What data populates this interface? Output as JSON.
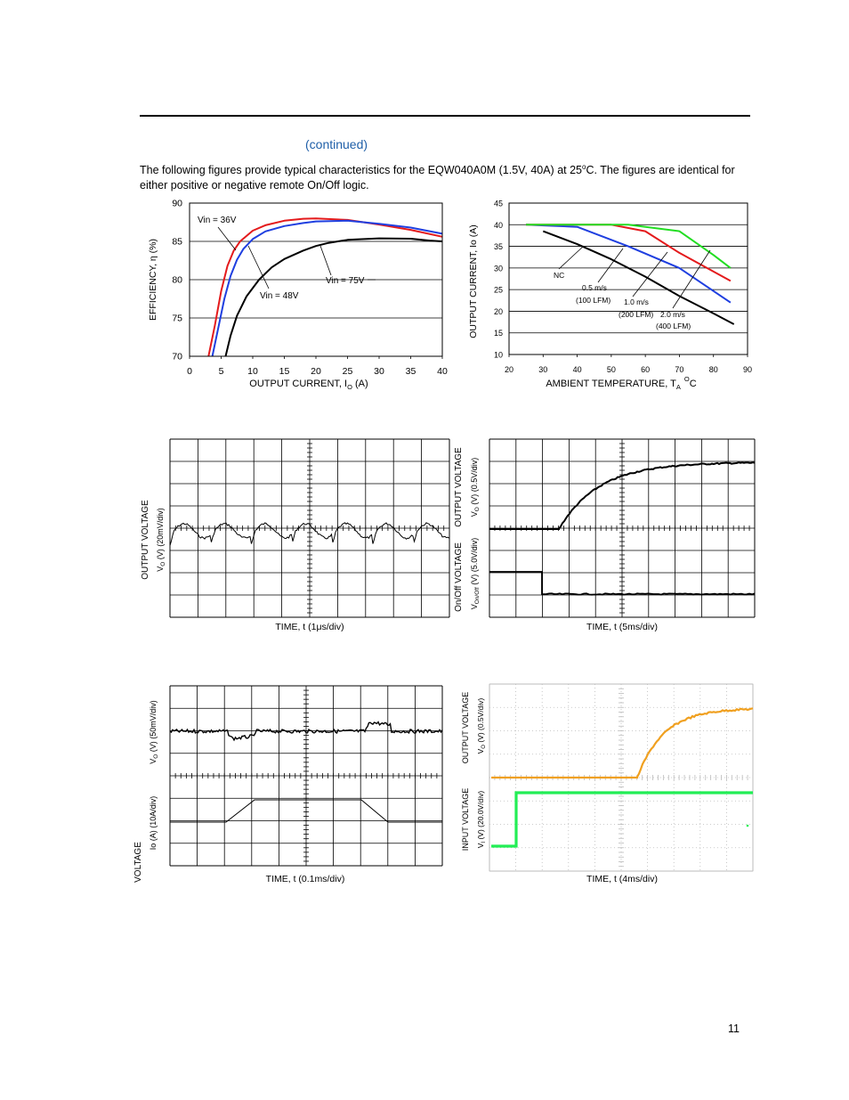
{
  "header": {
    "continued": "(continued)"
  },
  "intro": {
    "text_a": "The following figures provide typical characteristics for the EQW040A0M (1.5V, 40A) at 25",
    "sup": "o",
    "text_b": "C.  The figures are identical for either positive or negative remote On/Off logic."
  },
  "page_number": "11",
  "charts": [
    {
      "id": "efficiency",
      "type": "line",
      "ylabel_a": "EFFICIENCY, η  (%)",
      "xlabel_a": "OUTPUT CURRENT, I",
      "xlabel_sub": "O",
      "xlabel_b": " (A)",
      "x_ticks": [
        "0",
        "5",
        "10",
        "15",
        "20",
        "25",
        "30",
        "35",
        "40"
      ],
      "y_ticks": [
        "90",
        "85",
        "80",
        "75",
        "70"
      ],
      "xlim": [
        0,
        40
      ],
      "ylim": [
        70,
        90
      ],
      "annotations": [
        "Vin = 36V",
        "Vin = 48V",
        "Vin = 75V"
      ],
      "series": [
        {
          "name": "Vin = 36V",
          "color": "#e41a1c",
          "x": [
            3,
            4,
            5,
            6,
            7,
            8,
            10,
            12,
            15,
            18,
            20,
            25,
            30,
            35,
            40
          ],
          "y": [
            70,
            74,
            78.5,
            81.8,
            83.8,
            85,
            86.4,
            87.1,
            87.7,
            87.95,
            88,
            87.8,
            87.2,
            86.5,
            85.6
          ]
        },
        {
          "name": "Vin = 48V",
          "color": "#1f3fe0",
          "x": [
            3.6,
            4.5,
            5.5,
            6.5,
            7.5,
            8.5,
            10,
            12,
            15,
            18,
            20,
            25,
            30,
            35,
            40
          ],
          "y": [
            70,
            73.5,
            77.5,
            80.5,
            82.6,
            84,
            85.3,
            86.3,
            87,
            87.4,
            87.6,
            87.7,
            87.3,
            86.8,
            86
          ]
        },
        {
          "name": "Vin = 75V",
          "color": "#000000",
          "x": [
            5.7,
            6.5,
            7.5,
            9,
            11,
            13,
            15,
            18,
            20,
            22,
            25,
            30,
            35,
            38,
            40
          ],
          "y": [
            70,
            72.7,
            75.3,
            77.8,
            80,
            81.6,
            82.7,
            83.8,
            84.4,
            84.8,
            85.2,
            85.4,
            85.35,
            85.1,
            85
          ]
        }
      ]
    },
    {
      "id": "derating",
      "type": "line",
      "ylabel": "OUTPUT CURRENT, Io  (A)",
      "xlabel_a": "AMBIENT TEMPERATURE, T",
      "xlabel_sub": "A",
      "xlabel_sup": "O",
      "xlabel_b": "C",
      "x_ticks": [
        "20",
        "30",
        "40",
        "50",
        "60",
        "70",
        "80",
        "90"
      ],
      "y_ticks": [
        "45",
        "40",
        "35",
        "30",
        "25",
        "20",
        "15",
        "10"
      ],
      "xlim": [
        20,
        90
      ],
      "ylim": [
        10,
        45
      ],
      "annotations": [
        "NC",
        "0.5 m/s",
        "(100 LFM)",
        "1.0 m/s",
        "(200 LFM)",
        "2.0 m/s",
        "(400 LFM)"
      ],
      "series": [
        {
          "name": "NC",
          "color": "#000000",
          "x": [
            30,
            40,
            50,
            60,
            70,
            80,
            86
          ],
          "y": [
            38.5,
            35.5,
            32,
            28,
            23.5,
            19.5,
            17
          ]
        },
        {
          "name": "0.5 m/s (100 LFM)",
          "color": "#1f3fe0",
          "x": [
            25,
            40,
            55,
            70,
            85
          ],
          "y": [
            40,
            39.5,
            35,
            30,
            22
          ]
        },
        {
          "name": "1.0 m/s (200 LFM)",
          "color": "#e41a1c",
          "x": [
            25,
            50,
            60,
            70,
            85
          ],
          "y": [
            40,
            40,
            38.5,
            33.5,
            27
          ]
        },
        {
          "name": "2.0 m/s (400 LFM)",
          "color": "#22dd22",
          "x": [
            25,
            55,
            70,
            80,
            85
          ],
          "y": [
            40,
            40,
            38.5,
            33,
            30
          ]
        }
      ]
    }
  ],
  "scopes": {
    "ripple": {
      "ylabel1": "OUTPUT VOLTAGE",
      "ylabel2_a": "V",
      "ylabel2_sub": "O",
      "ylabel2_b": " (V) (20mV/div)",
      "xlabel": "TIME, t (1μs/div)"
    },
    "startup_onoff": {
      "ylabel1": "OUTPUT VOLTAGE",
      "ylabel2_a": "V",
      "ylabel2_sub": "O",
      "ylabel2_b": " (V) (0.5V/div)",
      "ylabel3": "On/Off VOLTAGE",
      "ylabel4_a": "V",
      "ylabel4_sub": "On/Off",
      "ylabel4_b": " (V) (5.0V/div)",
      "xlabel": "TIME, t (5ms/div)"
    },
    "transient": {
      "ylabel1_a": "V",
      "ylabel1_sub": "O",
      "ylabel1_b": " (V) (50mV/div)",
      "ylabel2": "Io (A) (10A/div)",
      "ylabel3": "VOLTAGE",
      "xlabel": "TIME, t (0.1ms/div)"
    },
    "startup_input": {
      "ylabel1": "OUTPUT VOLTAGE",
      "ylabel2_a": "V",
      "ylabel2_sub": "O",
      "ylabel2_b": " (V) (0.5V/div)",
      "ylabel3": "INPUT VOLTAGE",
      "ylabel4_a": "V",
      "ylabel4_sub": "I",
      "ylabel4_b": " (V) (20.0V/div)",
      "xlabel": "TIME, t (4ms/div)"
    }
  }
}
